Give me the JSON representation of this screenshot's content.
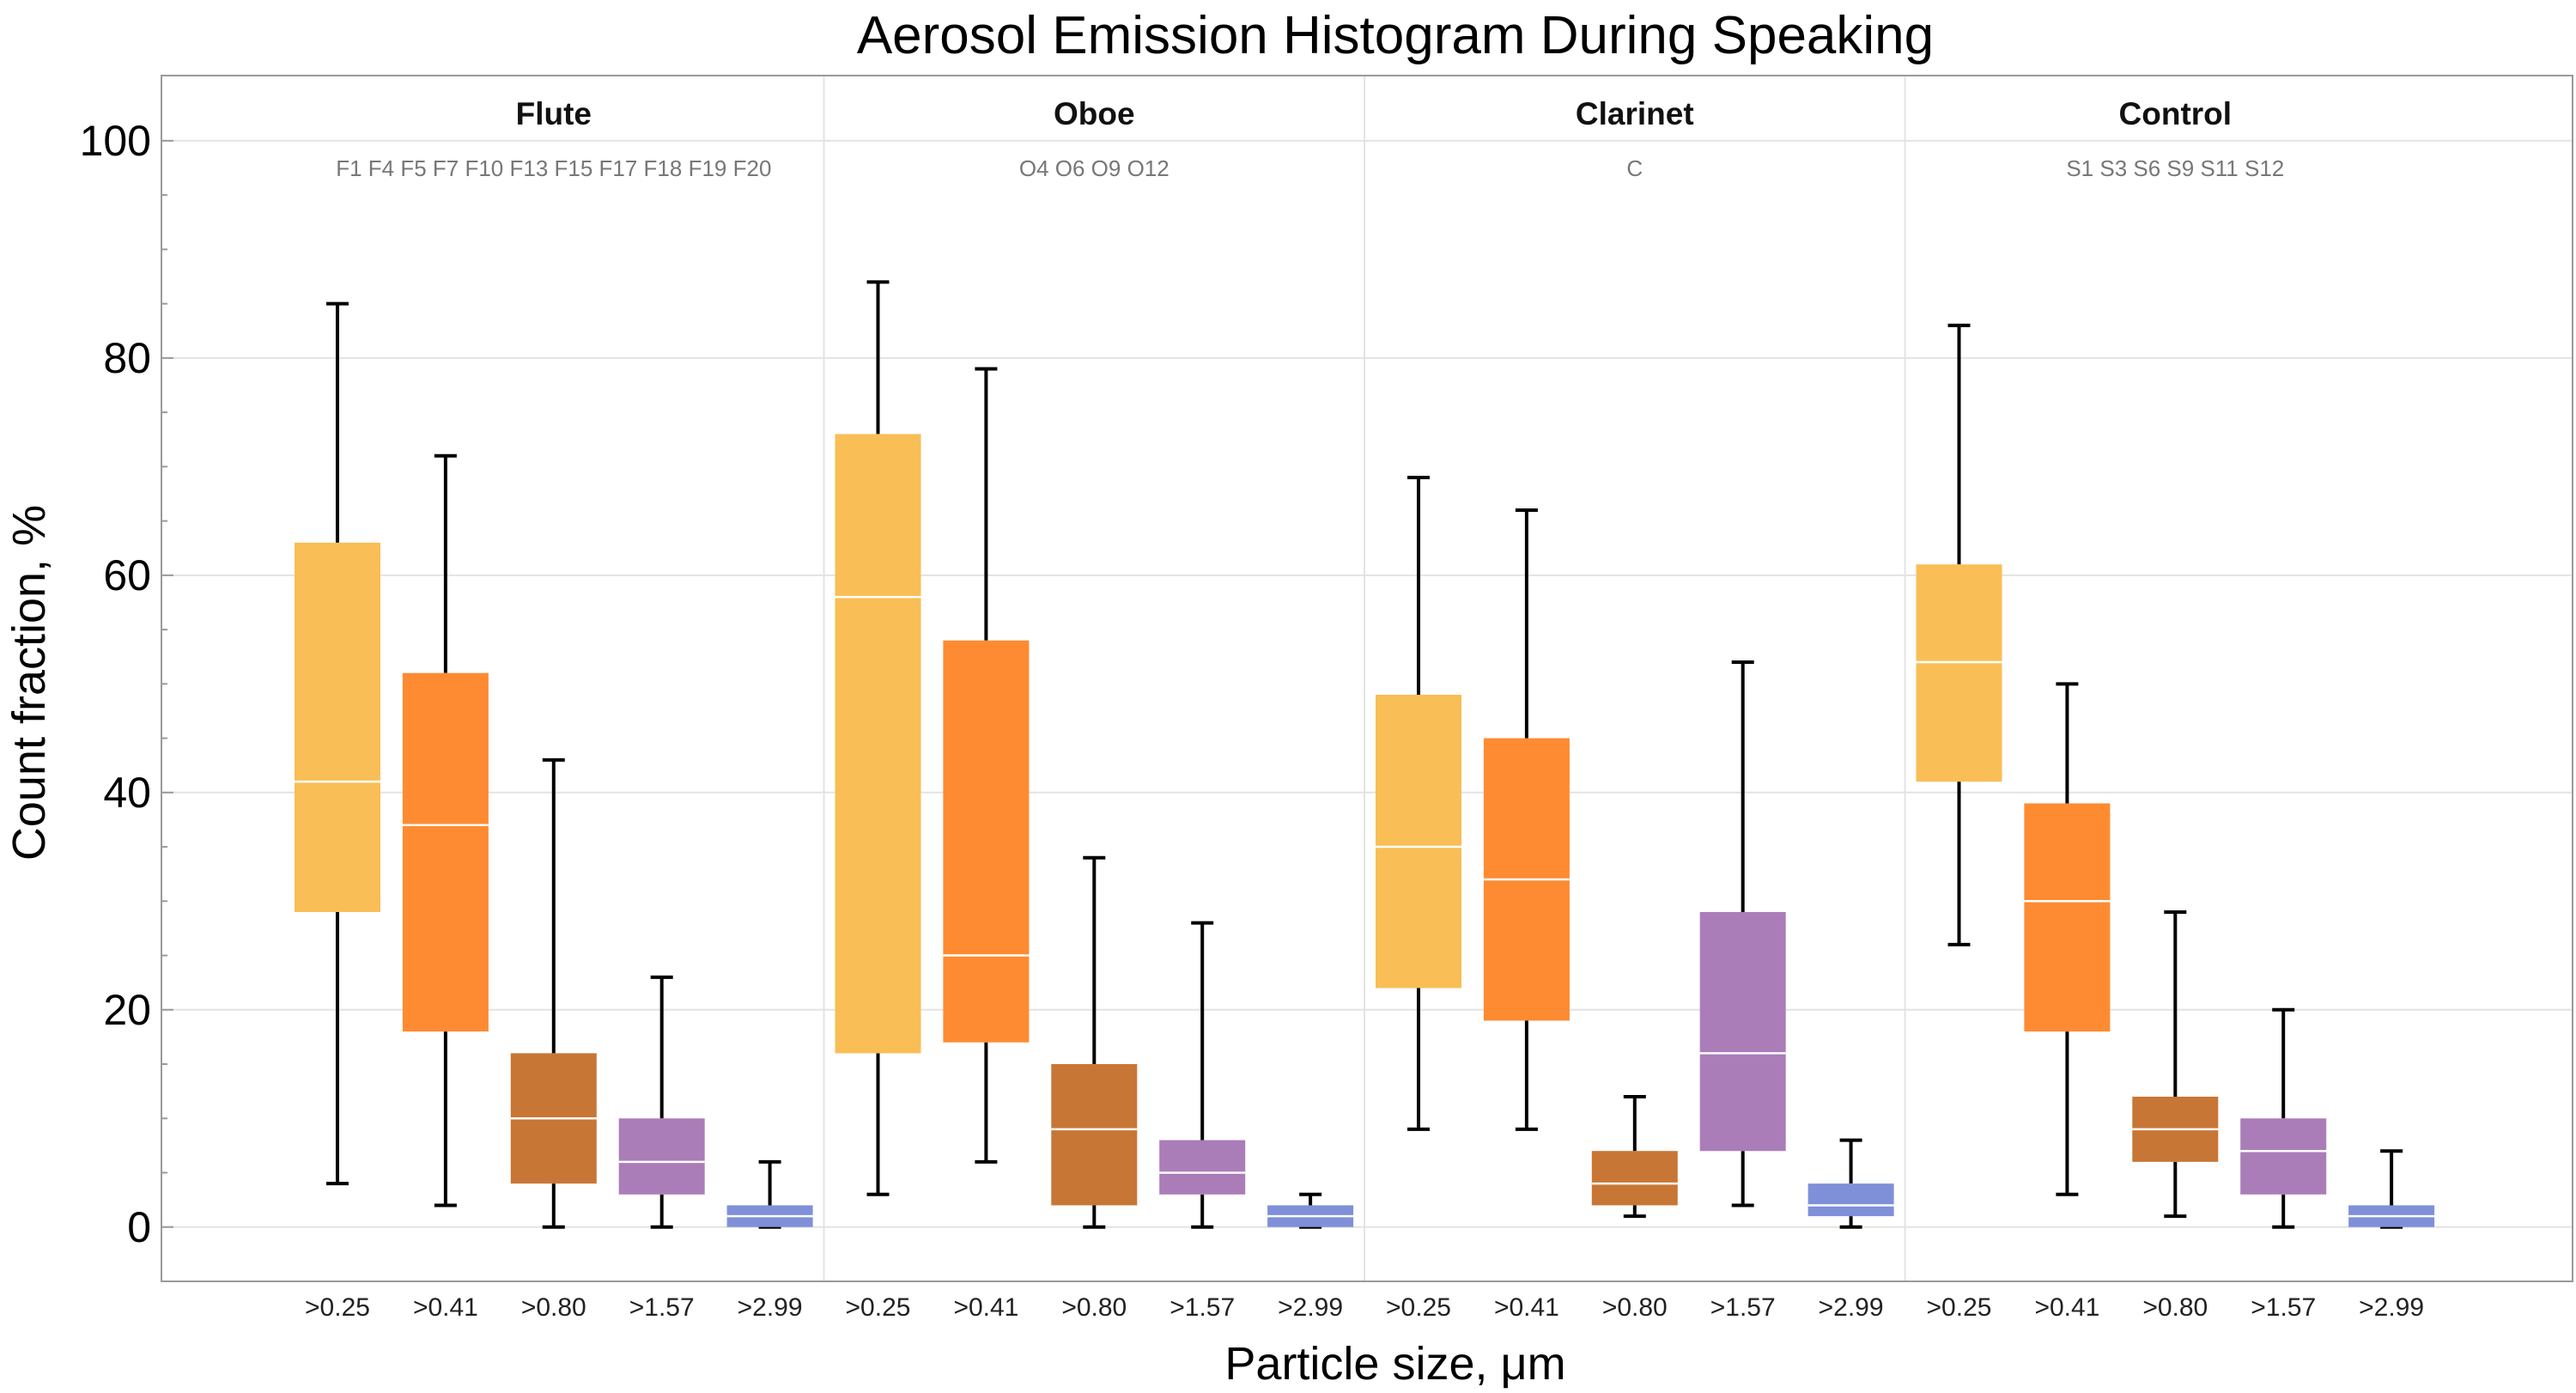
{
  "chart_data": {
    "type": "box",
    "title": "Aerosol Emission Histogram During Speaking",
    "xlabel": "Particle size,  μm",
    "ylabel": "Count  fraction,  %",
    "ylim": [
      -5,
      106
    ],
    "yticks": [
      0,
      20,
      40,
      60,
      80,
      100
    ],
    "grid": true,
    "categories": [
      ">0.25",
      ">0.41",
      ">0.80",
      ">1.57",
      ">2.99"
    ],
    "category_colors": [
      "#F9BE55",
      "#FE8B32",
      "#C87635",
      "#AA7DB9",
      "#7F90D8"
    ],
    "groups": [
      {
        "name": "Flute",
        "subjects": "F1 F4 F5 F7 F10 F13 F15 F17 F18 F19 F20",
        "boxes": [
          {
            "category": ">0.25",
            "min": 4,
            "q1": 29,
            "median": 41,
            "q3": 63,
            "max": 85
          },
          {
            "category": ">0.41",
            "min": 2,
            "q1": 18,
            "median": 37,
            "q3": 51,
            "max": 71
          },
          {
            "category": ">0.80",
            "min": 0,
            "q1": 4,
            "median": 10,
            "q3": 16,
            "max": 43
          },
          {
            "category": ">1.57",
            "min": 0,
            "q1": 3,
            "median": 6,
            "q3": 10,
            "max": 23
          },
          {
            "category": ">2.99",
            "min": 0,
            "q1": 0,
            "median": 1,
            "q3": 2,
            "max": 6
          }
        ]
      },
      {
        "name": "Oboe",
        "subjects": "O4 O6 O9 O12",
        "boxes": [
          {
            "category": ">0.25",
            "min": 3,
            "q1": 16,
            "median": 58,
            "q3": 73,
            "max": 87
          },
          {
            "category": ">0.41",
            "min": 6,
            "q1": 17,
            "median": 25,
            "q3": 54,
            "max": 79
          },
          {
            "category": ">0.80",
            "min": 0,
            "q1": 2,
            "median": 9,
            "q3": 15,
            "max": 34
          },
          {
            "category": ">1.57",
            "min": 0,
            "q1": 3,
            "median": 5,
            "q3": 8,
            "max": 28
          },
          {
            "category": ">2.99",
            "min": 0,
            "q1": 0,
            "median": 1,
            "q3": 2,
            "max": 3
          }
        ]
      },
      {
        "name": "Clarinet",
        "subjects": "C",
        "boxes": [
          {
            "category": ">0.25",
            "min": 9,
            "q1": 22,
            "median": 35,
            "q3": 49,
            "max": 69
          },
          {
            "category": ">0.41",
            "min": 9,
            "q1": 19,
            "median": 32,
            "q3": 45,
            "max": 66
          },
          {
            "category": ">0.80",
            "min": 1,
            "q1": 2,
            "median": 4,
            "q3": 7,
            "max": 12
          },
          {
            "category": ">1.57",
            "min": 2,
            "q1": 7,
            "median": 16,
            "q3": 29,
            "max": 52
          },
          {
            "category": ">2.99",
            "min": 0,
            "q1": 1,
            "median": 2,
            "q3": 4,
            "max": 8
          }
        ]
      },
      {
        "name": "Control",
        "subjects": "S1 S3 S6 S9 S11 S12",
        "boxes": [
          {
            "category": ">0.25",
            "min": 26,
            "q1": 41,
            "median": 52,
            "q3": 61,
            "max": 83
          },
          {
            "category": ">0.41",
            "min": 3,
            "q1": 18,
            "median": 30,
            "q3": 39,
            "max": 50
          },
          {
            "category": ">0.80",
            "min": 1,
            "q1": 6,
            "median": 9,
            "q3": 12,
            "max": 29
          },
          {
            "category": ">1.57",
            "min": 0,
            "q1": 3,
            "median": 7,
            "q3": 10,
            "max": 20
          },
          {
            "category": ">2.99",
            "min": 0,
            "q1": 0,
            "median": 1,
            "q3": 2,
            "max": 7
          }
        ]
      }
    ]
  }
}
